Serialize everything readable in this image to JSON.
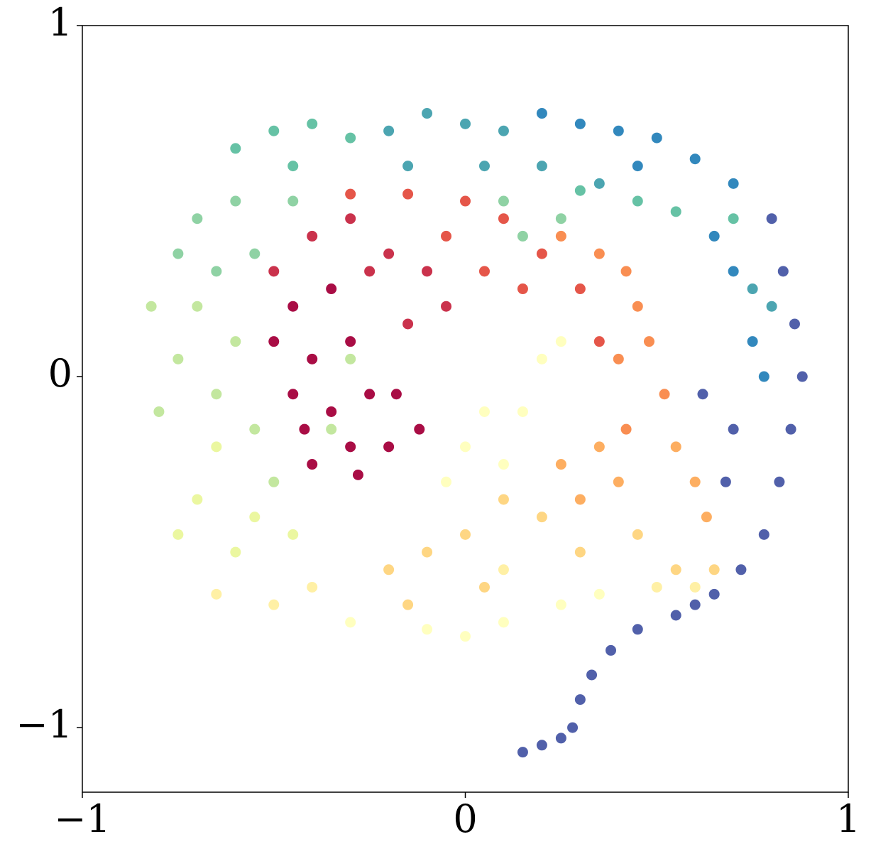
{
  "chart_data": {
    "type": "scatter",
    "x": [
      -0.45,
      -0.4,
      -0.35,
      -0.3,
      -0.2,
      -0.12,
      -0.4,
      -0.45,
      -0.3,
      -0.25,
      -0.18,
      -0.5,
      -0.35,
      -0.42,
      -0.28,
      -0.5,
      -0.4,
      -0.3,
      -0.2,
      -0.1,
      -0.05,
      -0.15,
      -0.25,
      -0.3,
      -0.15,
      0,
      0.1,
      0.2,
      0.3,
      -0.05,
      0.05,
      0.15,
      0.35,
      0.25,
      0.35,
      0.42,
      0.45,
      0.48,
      0.52,
      0.4,
      0.42,
      0.55,
      0.6,
      0.63,
      0.35,
      0.3,
      0.4,
      0.25,
      0.1,
      0,
      -0.1,
      -0.2,
      0.2,
      0.3,
      0.45,
      0.55,
      -0.15,
      0.05,
      0.65,
      -0.65,
      -0.5,
      -0.4,
      0.6,
      0.5,
      0.1,
      -0.3,
      -0.1,
      0,
      0.1,
      0.25,
      0.35,
      0.15,
      0.2,
      0.25,
      0.05,
      0,
      0.1,
      -0.05,
      -0.6,
      -0.7,
      -0.55,
      -0.75,
      -0.45,
      -0.65,
      -0.8,
      -0.75,
      -0.82,
      -0.7,
      -0.6,
      -0.65,
      -0.55,
      -0.5,
      -0.35,
      -0.3,
      -0.75,
      -0.7,
      -0.6,
      -0.55,
      -0.45,
      -0.65,
      0.1,
      0.25,
      0.15,
      -0.6,
      -0.5,
      -0.4,
      -0.3,
      -0.45,
      0.3,
      0.45,
      0.55,
      0.7,
      -0.2,
      -0.1,
      0,
      0.1,
      -0.15,
      0.05,
      0.2,
      0.35,
      0.75,
      0.8,
      0.2,
      0.3,
      0.4,
      0.5,
      0.6,
      0.7,
      0.45,
      0.65,
      0.7,
      0.75,
      0.78,
      0.8,
      0.83,
      0.86,
      0.88,
      0.85,
      0.82,
      0.78,
      0.72,
      0.65,
      0.6,
      0.55,
      0.45,
      0.38,
      0.33,
      0.3,
      0.28,
      0.25,
      0.2,
      0.15,
      0.7,
      0.62,
      0.68
    ],
    "values": [
      0.2,
      0.05,
      -0.1,
      -0.2,
      -0.2,
      -0.15,
      -0.25,
      -0.05,
      0.1,
      -0.05,
      -0.05,
      0.1,
      0.25,
      -0.15,
      -0.28,
      0.3,
      0.4,
      0.45,
      0.35,
      0.3,
      0.2,
      0.15,
      0.3,
      0.52,
      0.52,
      0.5,
      0.45,
      0.35,
      0.25,
      0.4,
      0.3,
      0.25,
      0.1,
      0.4,
      0.35,
      0.3,
      0.2,
      0.1,
      -0.05,
      0.05,
      -0.15,
      -0.2,
      -0.3,
      -0.4,
      -0.2,
      -0.35,
      -0.3,
      -0.25,
      -0.35,
      -0.45,
      -0.5,
      -0.55,
      -0.4,
      -0.5,
      -0.45,
      -0.55,
      -0.65,
      -0.6,
      -0.55,
      -0.62,
      -0.65,
      -0.6,
      -0.6,
      -0.6,
      -0.55,
      -0.7,
      -0.72,
      -0.74,
      -0.7,
      -0.65,
      -0.62,
      -0.1,
      0.05,
      0.1,
      -0.1,
      -0.2,
      -0.25,
      -0.3,
      -0.5,
      -0.35,
      -0.4,
      -0.45,
      -0.45,
      -0.2,
      -0.1,
      0.05,
      0.2,
      0.2,
      0.1,
      -0.05,
      -0.15,
      -0.3,
      -0.15,
      0.05,
      0.35,
      0.45,
      0.5,
      0.35,
      0.5,
      0.3,
      0.5,
      0.45,
      0.4,
      0.65,
      0.7,
      0.72,
      0.68,
      0.6,
      0.53,
      0.5,
      0.47,
      0.45,
      0.7,
      0.75,
      0.72,
      0.7,
      0.6,
      0.6,
      0.6,
      0.55,
      0.25,
      0.2,
      0.75,
      0.72,
      0.7,
      0.68,
      0.62,
      0.55,
      0.6,
      0.4,
      0.3,
      0.1,
      0,
      0.45,
      0.3,
      0.15,
      0,
      -0.15,
      -0.3,
      -0.45,
      -0.55,
      -0.62,
      -0.65,
      -0.68,
      -0.72,
      -0.78,
      -0.85,
      -0.92,
      -1,
      -1.03,
      -1.05,
      -1.07,
      -0.15,
      -0.05,
      -0.3
    ],
    "c": [
      0.02,
      0.02,
      0.02,
      0.02,
      0.02,
      0.02,
      0.02,
      0.02,
      0.02,
      0.02,
      0.02,
      0.02,
      0.02,
      0.02,
      0.02,
      0.08,
      0.08,
      0.08,
      0.08,
      0.08,
      0.08,
      0.08,
      0.08,
      0.15,
      0.15,
      0.15,
      0.15,
      0.15,
      0.15,
      0.15,
      0.15,
      0.15,
      0.15,
      0.25,
      0.25,
      0.25,
      0.25,
      0.25,
      0.25,
      0.25,
      0.25,
      0.3,
      0.3,
      0.3,
      0.3,
      0.3,
      0.3,
      0.3,
      0.38,
      0.38,
      0.38,
      0.38,
      0.38,
      0.38,
      0.38,
      0.38,
      0.38,
      0.38,
      0.38,
      0.45,
      0.45,
      0.45,
      0.45,
      0.45,
      0.45,
      0.5,
      0.5,
      0.5,
      0.5,
      0.5,
      0.5,
      0.5,
      0.5,
      0.5,
      0.5,
      0.5,
      0.5,
      0.5,
      0.58,
      0.58,
      0.58,
      0.58,
      0.58,
      0.58,
      0.66,
      0.66,
      0.66,
      0.66,
      0.66,
      0.66,
      0.66,
      0.66,
      0.66,
      0.66,
      0.74,
      0.74,
      0.74,
      0.74,
      0.74,
      0.74,
      0.74,
      0.74,
      0.74,
      0.8,
      0.8,
      0.8,
      0.8,
      0.8,
      0.8,
      0.8,
      0.8,
      0.8,
      0.85,
      0.85,
      0.85,
      0.85,
      0.85,
      0.85,
      0.85,
      0.85,
      0.85,
      0.85,
      0.9,
      0.9,
      0.9,
      0.9,
      0.9,
      0.9,
      0.9,
      0.9,
      0.9,
      0.9,
      0.9,
      0.97,
      0.97,
      0.97,
      0.97,
      0.97,
      0.97,
      0.97,
      0.97,
      0.97,
      0.97,
      0.97,
      0.97,
      0.97,
      0.97,
      0.97,
      0.97,
      0.97,
      0.97,
      0.97,
      0.97,
      0.97,
      0.97
    ],
    "colormap": [
      "#9e0142",
      "#d53e4f",
      "#f46d43",
      "#fdae61",
      "#fee08b",
      "#ffffbf",
      "#e6f598",
      "#abdda4",
      "#66c2a5",
      "#3288bd",
      "#5e4fa2"
    ],
    "xlim": [
      -1,
      1
    ],
    "ylim": [
      -1.184,
      1
    ],
    "xticks": [
      {
        "value": -1,
        "label": "−1"
      },
      0,
      1
    ],
    "yticks": [
      {
        "value": -1,
        "label": "−1"
      },
      0,
      1
    ],
    "grid": false
  }
}
